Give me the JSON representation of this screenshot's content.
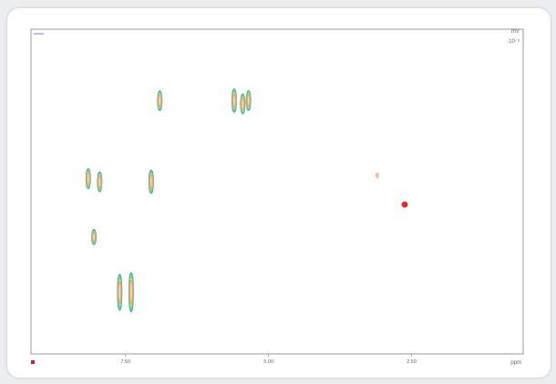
{
  "chart_data": {
    "type": "scatter",
    "title": "",
    "x_ticks": [
      "7.50",
      "5.00",
      "2.50"
    ],
    "x_unit": "ppm",
    "top_right_label": "mV",
    "top_right_sub": "·10⁻³",
    "top_left_label": "———",
    "xlim": [
      9.15,
      0.55
    ],
    "ylim": [
      0,
      1
    ],
    "colors": {
      "outer": "#3fb7b0",
      "mid": "#a3c96a",
      "inner": "#f2a36a",
      "core": "#ffe3c8",
      "dot": "#e5271e"
    },
    "peaks": [
      {
        "x": 6.9,
        "y": 0.78,
        "h": 0.06,
        "w": 0.07
      },
      {
        "x": 5.6,
        "y": 0.78,
        "h": 0.07,
        "w": 0.12
      },
      {
        "x": 5.45,
        "y": 0.77,
        "h": 0.06,
        "w": 0.1
      },
      {
        "x": 5.35,
        "y": 0.78,
        "h": 0.06,
        "w": 0.08
      },
      {
        "x": 8.15,
        "y": 0.54,
        "h": 0.06,
        "w": 0.07
      },
      {
        "x": 7.95,
        "y": 0.53,
        "h": 0.06,
        "w": 0.07
      },
      {
        "x": 7.05,
        "y": 0.53,
        "h": 0.07,
        "w": 0.07
      },
      {
        "x": 8.05,
        "y": 0.36,
        "h": 0.045,
        "w": 0.06
      },
      {
        "x": 7.4,
        "y": 0.19,
        "h": 0.12,
        "w": 0.1
      },
      {
        "x": 7.6,
        "y": 0.19,
        "h": 0.11,
        "w": 0.11
      }
    ],
    "faint_peak": {
      "x": 3.1,
      "y": 0.55
    },
    "marker": {
      "x": 2.62,
      "y": 0.46
    }
  }
}
